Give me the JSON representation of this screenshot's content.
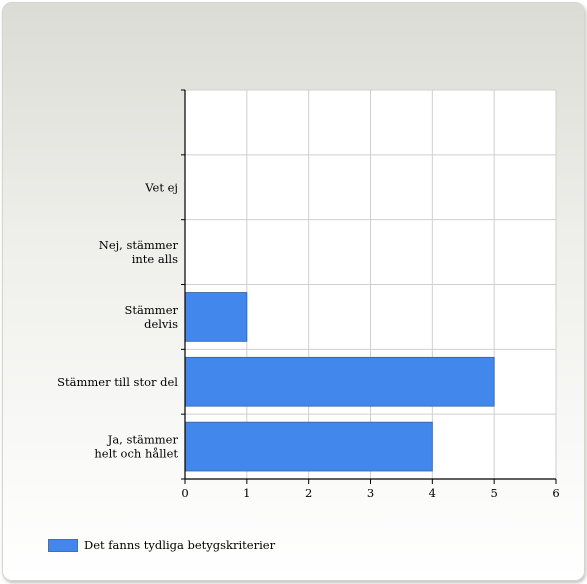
{
  "chart_data": {
    "type": "bar",
    "orientation": "horizontal",
    "categories": [
      "Vet ej",
      "Nej, stämmer inte alls",
      "Stämmer delvis",
      "Stämmer till stor del",
      "Ja, stämmer helt och hållet"
    ],
    "category_label_lines": [
      [
        "Vet ej"
      ],
      [
        "Nej, stämmer",
        "inte alls"
      ],
      [
        "Stämmer",
        "delvis"
      ],
      [
        "Stämmer till stor del"
      ],
      [
        "Ja, stämmer",
        "helt och hållet"
      ]
    ],
    "series": [
      {
        "name": "Det fanns tydliga betygskriterier",
        "values": [
          0,
          0,
          1,
          5,
          4
        ],
        "color": "#4287ec"
      }
    ],
    "xlim": [
      0,
      6
    ],
    "xticks": [
      "0",
      "1",
      "2",
      "3",
      "4",
      "5",
      "6"
    ],
    "grid": true,
    "legend_position": "bottom-left"
  }
}
